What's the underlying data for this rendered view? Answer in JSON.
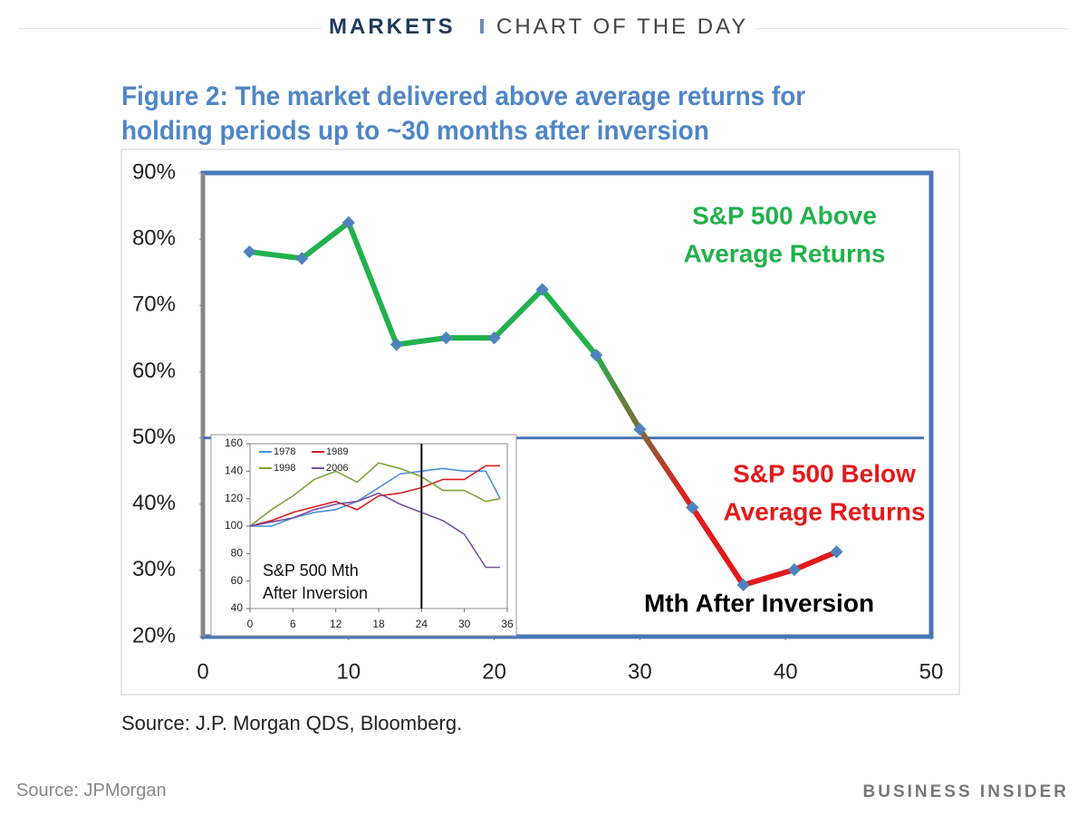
{
  "header": {
    "section": "MARKETS",
    "kicker": "CHART OF THE DAY"
  },
  "footer": {
    "source": "Source: JPMorgan",
    "brand": "BUSINESS INSIDER"
  },
  "chart_data": [
    {
      "type": "line",
      "title": "Figure 2: The market delivered above average returns for holding periods up to ~30 months after inversion",
      "source": "Source: J.P. Morgan QDS, Bloomberg.",
      "x": [
        3.2,
        6.8,
        10,
        13.3,
        16.7,
        20,
        23.3,
        27,
        30,
        33.6,
        37.1,
        40.6,
        43.5
      ],
      "series": [
        {
          "values": [
            78.1,
            77.1,
            82.5,
            64.1,
            65.1,
            65.1,
            72.4,
            62.5,
            51.3,
            39.5,
            27.8,
            30.1,
            32.8
          ],
          "colors": [
            "#22b14c",
            "#e31a1c"
          ],
          "marker_color": "#4f81bd"
        }
      ],
      "reference_line": 50,
      "reference_color": "#4a76b8",
      "xlim": [
        0,
        50
      ],
      "xticks": [
        0,
        10,
        20,
        30,
        40,
        50
      ],
      "ylim": [
        20,
        90
      ],
      "yticks": [
        {
          "value": 20,
          "label": "20%"
        },
        {
          "value": 30,
          "label": "30%"
        },
        {
          "value": 40,
          "label": "40%"
        },
        {
          "value": 50,
          "label": "50%"
        },
        {
          "value": 60,
          "label": "60%"
        },
        {
          "value": 70,
          "label": "70%"
        },
        {
          "value": 80,
          "label": "80%"
        },
        {
          "value": 90,
          "label": "90%"
        }
      ],
      "annotations": [
        {
          "lines": [
            "S&P 500 Above",
            "Average Returns"
          ],
          "color": "#22b14c"
        },
        {
          "lines": [
            "S&P 500 Below",
            "Average Returns"
          ],
          "color": "#e31a1c"
        },
        {
          "lines": [
            "Mth After Inversion"
          ],
          "color": "#000000"
        }
      ]
    },
    {
      "type": "line",
      "annotation_lines": [
        "S&P 500 Mth",
        "After Inversion"
      ],
      "x": [
        0,
        3,
        6,
        9,
        12,
        15,
        18,
        21,
        24,
        27,
        30,
        33,
        35
      ],
      "series": [
        {
          "name": "1978",
          "color": "#4a90d9",
          "values": [
            100,
            100,
            106,
            110,
            112,
            118,
            128,
            138,
            140,
            142,
            140,
            140,
            120
          ]
        },
        {
          "name": "1989",
          "color": "#d62020",
          "values": [
            100,
            104,
            110,
            114,
            118,
            112,
            122,
            124,
            128,
            134,
            134,
            144,
            144
          ]
        },
        {
          "name": "1998",
          "color": "#7fa33a",
          "values": [
            100,
            112,
            122,
            134,
            140,
            132,
            146,
            142,
            136,
            126,
            126,
            118,
            120
          ]
        },
        {
          "name": "2006",
          "color": "#7a4fa0",
          "values": [
            100,
            103,
            106,
            112,
            116,
            118,
            124,
            116,
            110,
            104,
            94,
            70,
            70
          ]
        }
      ],
      "reference_x": 24,
      "xlim": [
        0,
        36
      ],
      "xticks": [
        0,
        6,
        12,
        18,
        24,
        30,
        36
      ],
      "ylim": [
        40,
        160
      ],
      "yticks": [
        40,
        60,
        80,
        100,
        120,
        140,
        160
      ]
    }
  ]
}
